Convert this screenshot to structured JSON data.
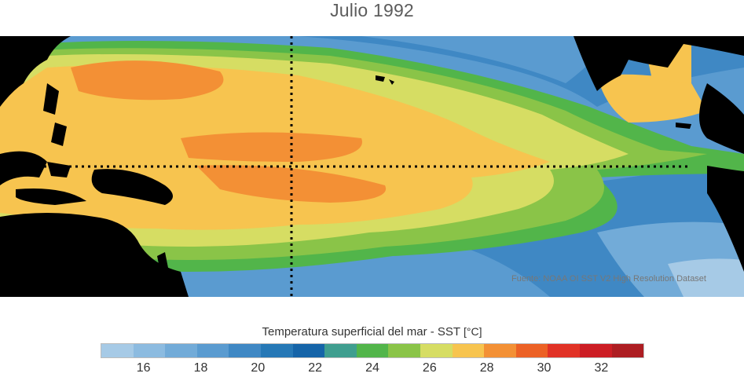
{
  "title": "Julio 1992",
  "credit": "Fuente: NOAA OI SST V2 High Resolution Dataset",
  "colorbar": {
    "label": "Temperatura superficial del mar - SST",
    "unit": "[°C]",
    "min": 15,
    "max": 33,
    "step": 1,
    "colors": [
      "#a6cae6",
      "#8cbbe0",
      "#72abd8",
      "#5a9bd0",
      "#3f88c4",
      "#2678b6",
      "#1564a8",
      "#3f9e8f",
      "#52b54a",
      "#8ac448",
      "#d6dd63",
      "#f7c44f",
      "#f39035",
      "#ec6125",
      "#e13226",
      "#cc1d24",
      "#ad1d22"
    ],
    "tick_labels": [
      "16",
      "18",
      "20",
      "22",
      "24",
      "26",
      "28",
      "30",
      "32"
    ],
    "tick_values": [
      16,
      18,
      20,
      22,
      24,
      26,
      28,
      30,
      32
    ]
  },
  "map": {
    "land_color": "#000000",
    "reference_line_color": "#000000",
    "equator_line": "dotted",
    "meridian_line": "dotted"
  }
}
